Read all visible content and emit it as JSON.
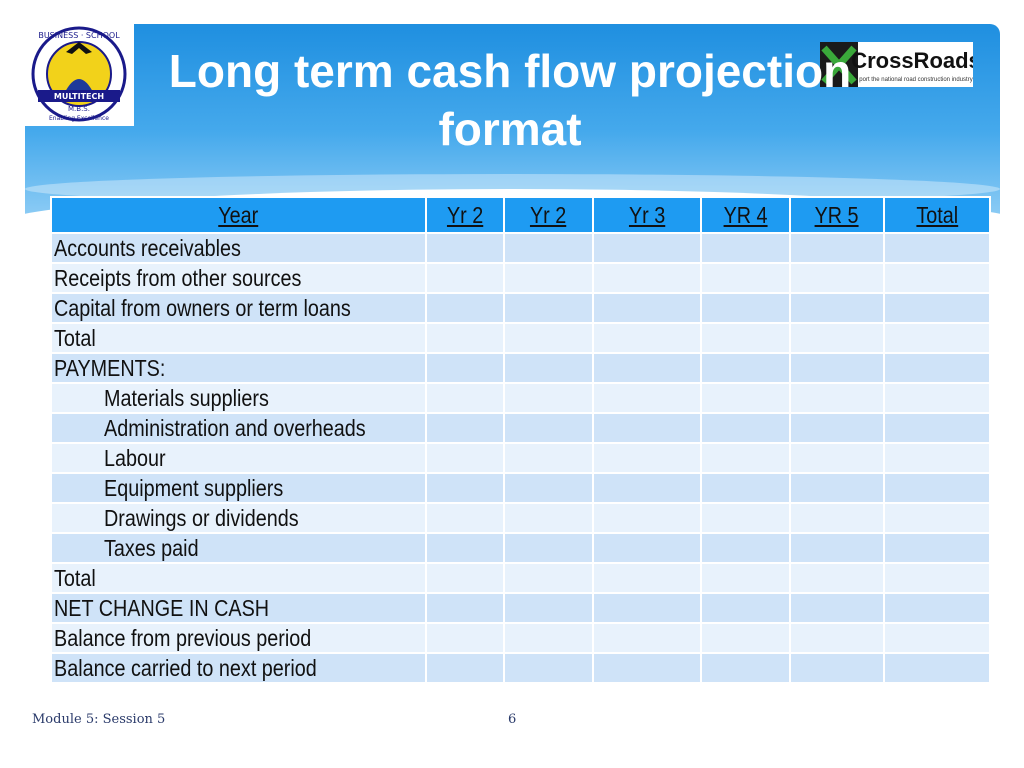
{
  "slide": {
    "title_line1": "Long term cash flow projection",
    "title_line2": "format"
  },
  "logos": {
    "left_logo_text": [
      "BUSINESS",
      "SCHOOL",
      "MULTITECH",
      "M.B.S.",
      "Enabling Excellence"
    ],
    "right_logo_text": "CrossRoads",
    "right_logo_tagline": "port the national road construction industry"
  },
  "table": {
    "headers": [
      "Year",
      "Yr 2",
      "Yr 2",
      "Yr 3",
      "YR 4",
      "YR 5",
      "Total"
    ],
    "rows": [
      "Accounts receivables",
      "Receipts from other sources",
      "Capital from owners or term loans",
      "Total",
      "PAYMENTS:",
      "Materials suppliers",
      "Administration and overheads",
      "Labour",
      "Equipment suppliers",
      "Drawings or dividends",
      "Taxes paid",
      "Total",
      "NET CHANGE IN CASH",
      "Balance from previous period",
      "Balance carried to next period"
    ]
  },
  "footer": {
    "module": "Module 5: Session 5",
    "page_number": "6"
  },
  "colors": {
    "header_blue": "#1e9bf2",
    "row_dark": "#cfe3f8",
    "row_light": "#e8f2fc"
  }
}
